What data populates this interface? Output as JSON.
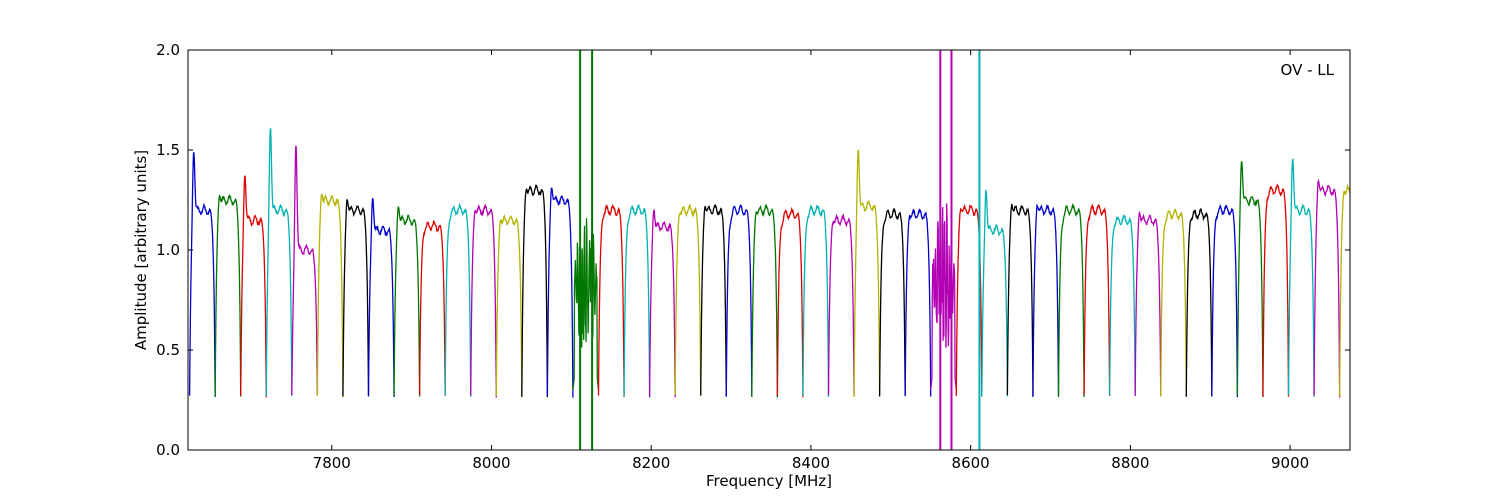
{
  "chart_data": {
    "type": "line",
    "annotation": "OV - LL",
    "xlabel": "Frequency [MHz]",
    "ylabel": "Amplitude [arbitrary units]",
    "xlim": [
      7620,
      9075
    ],
    "ylim": [
      0.0,
      2.0
    ],
    "xticks": [
      7800,
      8000,
      8200,
      8400,
      8600,
      8800,
      9000
    ],
    "yticks": [
      0.0,
      0.5,
      1.0,
      1.5,
      2.0
    ],
    "xtick_labels": [
      "7800",
      "8000",
      "8200",
      "8400",
      "8600",
      "8800",
      "9000"
    ],
    "ytick_labels": [
      "0.0",
      "0.5",
      "1.0",
      "1.5",
      "2.0"
    ],
    "grid": false,
    "colors": [
      "#0000cc",
      "#007700",
      "#dd0000",
      "#00b3b3",
      "#b300b3",
      "#b3b300",
      "#000000"
    ],
    "channel_width_mhz": 32,
    "channels": [
      {
        "start": 7622,
        "color": "#0000cc",
        "peak": 1.57,
        "level": 1.2
      },
      {
        "start": 7654,
        "color": "#007700",
        "peak": 1.35,
        "level": 1.25
      },
      {
        "start": 7686,
        "color": "#dd0000",
        "peak": 1.45,
        "level": 1.15
      },
      {
        "start": 7718,
        "color": "#00b3b3",
        "peak": 1.69,
        "level": 1.2
      },
      {
        "start": 7750,
        "color": "#b300b3",
        "peak": 1.59,
        "level": 1.0
      },
      {
        "start": 7782,
        "color": "#b3b300",
        "peak": 1.36,
        "level": 1.25
      },
      {
        "start": 7814,
        "color": "#000000",
        "peak": 1.33,
        "level": 1.2
      },
      {
        "start": 7846,
        "color": "#0000cc",
        "peak": 1.33,
        "level": 1.1
      },
      {
        "start": 7878,
        "color": "#007700",
        "peak": 1.29,
        "level": 1.15
      },
      {
        "start": 7910,
        "color": "#dd0000",
        "peak": 1.15,
        "level": 1.12
      },
      {
        "start": 7942,
        "color": "#00b3b3",
        "peak": 1.21,
        "level": 1.2
      },
      {
        "start": 7974,
        "color": "#b300b3",
        "peak": 1.27,
        "level": 1.2
      },
      {
        "start": 8006,
        "color": "#b3b300",
        "peak": 1.22,
        "level": 1.15
      },
      {
        "start": 8038,
        "color": "#000000",
        "peak": 1.38,
        "level": 1.3
      },
      {
        "start": 8070,
        "color": "#0000cc",
        "peak": 1.39,
        "level": 1.25
      },
      {
        "start": 8102,
        "color": "#007700",
        "peak": 1.1,
        "level": 0.7,
        "noisy": true
      },
      {
        "start": 8134,
        "color": "#dd0000",
        "peak": 1.23,
        "level": 1.2
      },
      {
        "start": 8166,
        "color": "#00b3b3",
        "peak": 1.22,
        "level": 1.2
      },
      {
        "start": 8198,
        "color": "#b300b3",
        "peak": 1.27,
        "level": 1.12
      },
      {
        "start": 8230,
        "color": "#b3b300",
        "peak": 1.25,
        "level": 1.2
      },
      {
        "start": 8262,
        "color": "#000000",
        "peak": 1.29,
        "level": 1.2
      },
      {
        "start": 8294,
        "color": "#0000cc",
        "peak": 1.21,
        "level": 1.2
      },
      {
        "start": 8326,
        "color": "#007700",
        "peak": 1.26,
        "level": 1.2
      },
      {
        "start": 8358,
        "color": "#dd0000",
        "peak": 1.19,
        "level": 1.18
      },
      {
        "start": 8390,
        "color": "#00b3b3",
        "peak": 1.22,
        "level": 1.2
      },
      {
        "start": 8422,
        "color": "#b300b3",
        "peak": 1.21,
        "level": 1.15
      },
      {
        "start": 8454,
        "color": "#b3b300",
        "peak": 1.58,
        "level": 1.22
      },
      {
        "start": 8486,
        "color": "#000000",
        "peak": 1.2,
        "level": 1.18
      },
      {
        "start": 8518,
        "color": "#0000cc",
        "peak": 1.24,
        "level": 1.18
      },
      {
        "start": 8550,
        "color": "#b300b3",
        "peak": 1.1,
        "level": 0.7,
        "noisy": true
      },
      {
        "start": 8582,
        "color": "#dd0000",
        "peak": 1.28,
        "level": 1.2
      },
      {
        "start": 8614,
        "color": "#00b3b3",
        "peak": 1.37,
        "level": 1.1
      },
      {
        "start": 8646,
        "color": "#000000",
        "peak": 1.3,
        "level": 1.2
      },
      {
        "start": 8678,
        "color": "#0000cc",
        "peak": 1.3,
        "level": 1.2
      },
      {
        "start": 8710,
        "color": "#007700",
        "peak": 1.21,
        "level": 1.2
      },
      {
        "start": 8742,
        "color": "#dd0000",
        "peak": 1.22,
        "level": 1.2
      },
      {
        "start": 8774,
        "color": "#00b3b3",
        "peak": 1.18,
        "level": 1.15
      },
      {
        "start": 8806,
        "color": "#b300b3",
        "peak": 1.26,
        "level": 1.15
      },
      {
        "start": 8838,
        "color": "#b3b300",
        "peak": 1.2,
        "level": 1.18
      },
      {
        "start": 8870,
        "color": "#000000",
        "peak": 1.22,
        "level": 1.18
      },
      {
        "start": 8902,
        "color": "#0000cc",
        "peak": 1.23,
        "level": 1.2
      },
      {
        "start": 8934,
        "color": "#007700",
        "peak": 1.53,
        "level": 1.25
      },
      {
        "start": 8966,
        "color": "#dd0000",
        "peak": 1.33,
        "level": 1.3
      },
      {
        "start": 8998,
        "color": "#00b3b3",
        "peak": 1.54,
        "level": 1.2
      },
      {
        "start": 9030,
        "color": "#b300b3",
        "peak": 1.43,
        "level": 1.3
      },
      {
        "start": 9062,
        "color": "#b3b300",
        "peak": 1.37,
        "level": 1.3
      }
    ],
    "spikes": [
      {
        "x": 8111,
        "color": "#007700",
        "y_top": 2.0
      },
      {
        "x": 8126,
        "color": "#007700",
        "y_top": 2.0
      },
      {
        "x": 8562,
        "color": "#b300b3",
        "y_top": 2.0
      },
      {
        "x": 8576,
        "color": "#b300b3",
        "y_top": 2.0
      },
      {
        "x": 8611,
        "color": "#00b3b3",
        "y_top": 2.0
      }
    ]
  }
}
